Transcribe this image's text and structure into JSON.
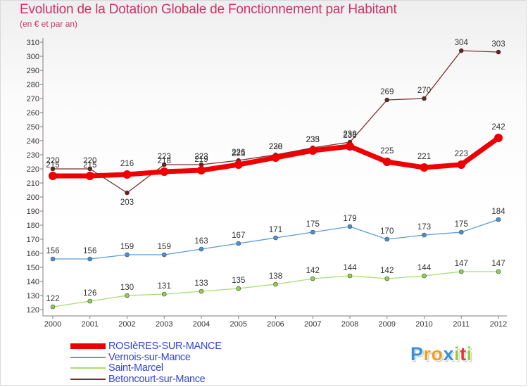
{
  "title": "Evolution de la Dotation Globale de Fonctionnement par Habitant",
  "subtitle": "(en € et par an)",
  "logo": {
    "letters": [
      {
        "ch": "P",
        "color": "#3a8fd9"
      },
      {
        "ch": "r",
        "color": "#f0a020"
      },
      {
        "ch": "o",
        "color": "#f0a020"
      },
      {
        "ch": "x",
        "color": "#3a8fd9"
      },
      {
        "ch": "i",
        "color": "#9acd32"
      },
      {
        "ch": "t",
        "color": "#e23a3a"
      },
      {
        "ch": "i",
        "color": "#9acd32"
      }
    ]
  },
  "chart_data": {
    "type": "line",
    "title": "Evolution de la Dotation Globale de Fonctionnement par Habitant",
    "subtitle": "(en € et par an)",
    "x": [
      2000,
      2001,
      2002,
      2003,
      2004,
      2005,
      2006,
      2007,
      2008,
      2009,
      2010,
      2011,
      2012
    ],
    "ylim": [
      120,
      310
    ],
    "yticks": [
      120,
      130,
      140,
      150,
      160,
      170,
      180,
      190,
      200,
      210,
      220,
      230,
      240,
      250,
      260,
      270,
      280,
      290,
      300,
      310
    ],
    "grid": false,
    "legend_position": "bottom-left",
    "series": [
      {
        "name": "ROSIèRES-SUR-MANCE",
        "values": [
          215,
          215,
          216,
          218,
          219,
          223,
          228,
          233,
          236,
          225,
          221,
          223,
          242
        ],
        "color": "#ee0000",
        "emphasis": true
      },
      {
        "name": "Vernois-sur-Mance",
        "values": [
          156,
          156,
          159,
          159,
          163,
          167,
          171,
          175,
          179,
          170,
          173,
          175,
          184
        ],
        "color": "#5b9bd5",
        "marker_color": "#4a90d9",
        "emphasis": false
      },
      {
        "name": "Saint-Marcel",
        "values": [
          122,
          126,
          130,
          131,
          133,
          135,
          138,
          142,
          144,
          142,
          144,
          147,
          147
        ],
        "color": "#a8dc78",
        "marker_color": "#8fd04f",
        "emphasis": false
      },
      {
        "name": "Betoncourt-sur-Mance",
        "values": [
          220,
          220,
          203,
          223,
          223,
          226,
          230,
          235,
          239,
          269,
          270,
          304,
          303
        ],
        "color": "#7a3030",
        "marker_color": "#6a1e1e",
        "emphasis": false
      }
    ]
  }
}
